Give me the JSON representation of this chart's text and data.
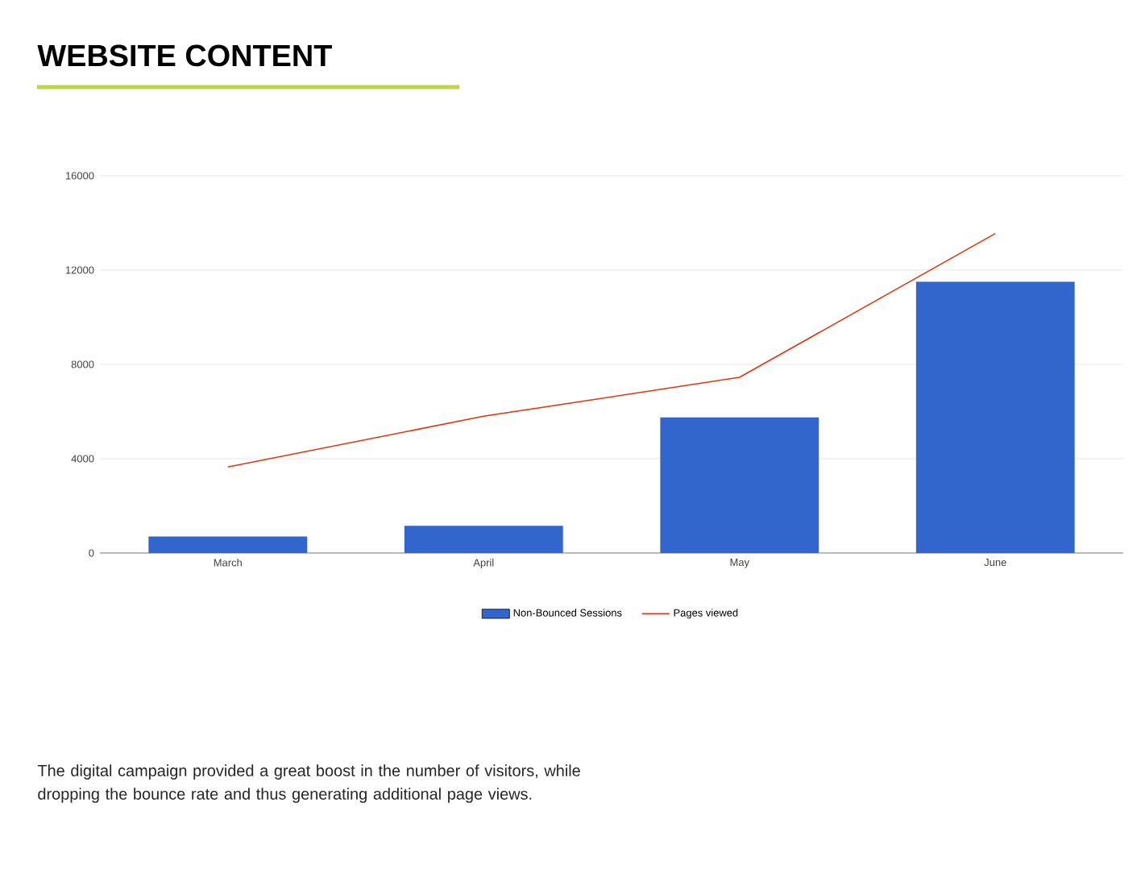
{
  "chart_data": {
    "type": "bar",
    "title": "WEBSITE CONTENT",
    "categories": [
      "March",
      "April",
      "May",
      "June"
    ],
    "series": [
      {
        "name": "Non-Bounced Sessions",
        "color": "#3366cc",
        "values": [
          700,
          1150,
          5750,
          11500
        ]
      },
      {
        "name": "Pages viewed",
        "type": "line",
        "color": "#dc3912",
        "values": [
          3650,
          5800,
          7450,
          13550
        ]
      }
    ],
    "ylim": [
      0,
      16000
    ],
    "yticks": [
      0,
      4000,
      8000,
      12000,
      16000
    ],
    "grid": "y",
    "legend": "bottom",
    "marker": "none",
    "annotations": [
      "The digital campaign provided a great boost in the number of visitors, while dropping the bounce rate and thus generating additional page views."
    ]
  }
}
